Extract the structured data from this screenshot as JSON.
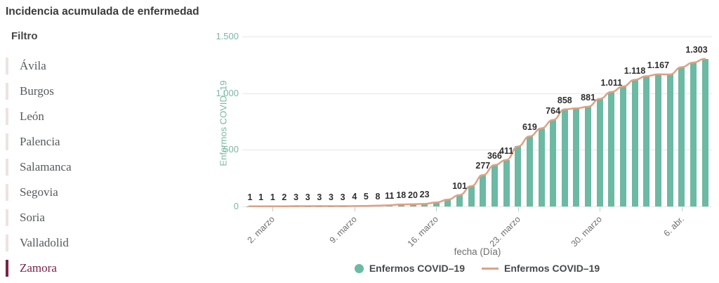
{
  "page_title": "Incidencia acumulada de enfermedad",
  "filter": {
    "heading": "Filtro",
    "items": [
      {
        "label": "Ávila",
        "selected": false
      },
      {
        "label": "Burgos",
        "selected": false
      },
      {
        "label": "León",
        "selected": false
      },
      {
        "label": "Palencia",
        "selected": false
      },
      {
        "label": "Salamanca",
        "selected": false
      },
      {
        "label": "Segovia",
        "selected": false
      },
      {
        "label": "Soria",
        "selected": false
      },
      {
        "label": "Valladolid",
        "selected": false
      },
      {
        "label": "Zamora",
        "selected": true
      }
    ]
  },
  "chart_data": {
    "type": "bar",
    "title": "Incidencia acumulada de enfermedad",
    "xlabel": "fecha (Día)",
    "ylabel": "Enfermos COVID–19",
    "ylim": [
      0,
      1500
    ],
    "yticks": [
      0,
      500,
      1000,
      1500
    ],
    "grid": true,
    "legend_position": "bottom",
    "series": [
      {
        "name": "Enfermos COVID–19",
        "type": "column",
        "color": "#6cb9a4"
      },
      {
        "name": "Enfermos COVID–19",
        "type": "line",
        "color": "#dfa183"
      }
    ],
    "xticks": [
      {
        "point": 2,
        "label": "2. marzo"
      },
      {
        "point": 9,
        "label": "9. marzo"
      },
      {
        "point": 16,
        "label": "16. marzo"
      },
      {
        "point": 23,
        "label": "23. marzo"
      },
      {
        "point": 30,
        "label": "30. marzo"
      },
      {
        "point": 37,
        "label": "6. abr."
      }
    ],
    "points": [
      {
        "value": 1,
        "label": "1"
      },
      {
        "value": 1,
        "label": "1"
      },
      {
        "value": 1,
        "label": "1"
      },
      {
        "value": 2,
        "label": "2"
      },
      {
        "value": 3,
        "label": "3"
      },
      {
        "value": 3,
        "label": "3"
      },
      {
        "value": 3,
        "label": "3"
      },
      {
        "value": 3,
        "label": "3"
      },
      {
        "value": 3,
        "label": "3"
      },
      {
        "value": 4,
        "label": "4"
      },
      {
        "value": 5,
        "label": "5"
      },
      {
        "value": 8,
        "label": "8"
      },
      {
        "value": 11,
        "label": "11"
      },
      {
        "value": 18,
        "label": "18"
      },
      {
        "value": 20,
        "label": "20"
      },
      {
        "value": 23,
        "label": "23"
      },
      {
        "value": 36,
        "label": ""
      },
      {
        "value": 61,
        "label": ""
      },
      {
        "value": 101,
        "label": "101"
      },
      {
        "value": 180,
        "label": ""
      },
      {
        "value": 277,
        "label": "277"
      },
      {
        "value": 366,
        "label": "366"
      },
      {
        "value": 411,
        "label": "411"
      },
      {
        "value": 530,
        "label": ""
      },
      {
        "value": 619,
        "label": "619"
      },
      {
        "value": 690,
        "label": ""
      },
      {
        "value": 764,
        "label": "764"
      },
      {
        "value": 858,
        "label": "858"
      },
      {
        "value": 866,
        "label": ""
      },
      {
        "value": 881,
        "label": "881"
      },
      {
        "value": 950,
        "label": ""
      },
      {
        "value": 1011,
        "label": "1.011"
      },
      {
        "value": 1060,
        "label": ""
      },
      {
        "value": 1118,
        "label": "1.118"
      },
      {
        "value": 1150,
        "label": ""
      },
      {
        "value": 1167,
        "label": "1.167"
      },
      {
        "value": 1165,
        "label": ""
      },
      {
        "value": 1230,
        "label": ""
      },
      {
        "value": 1270,
        "label": ""
      },
      {
        "value": 1303,
        "label": "1.303"
      }
    ]
  },
  "colors": {
    "bar": "#6cb9a4",
    "line": "#dfa183",
    "axis_text": "#7ab7a5",
    "selected": "#7c2146",
    "grid": "#e6e6e6",
    "muted_text": "#6e6e6e",
    "label_text": "#2e2e2e"
  }
}
